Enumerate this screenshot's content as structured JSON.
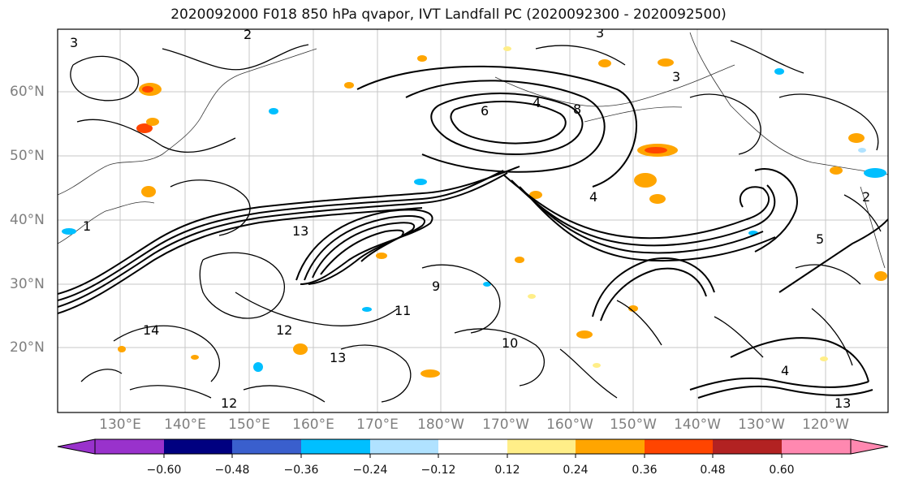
{
  "title": "2020092000 F018 850 hPa qvapor, IVT Landfall PC (2020092300 - 2020092500)",
  "map": {
    "lat_labels": [
      "60°N",
      "50°N",
      "40°N",
      "30°N",
      "20°N"
    ],
    "lon_labels": [
      "130°E",
      "140°E",
      "150°E",
      "160°E",
      "170°E",
      "180°W",
      "170°W",
      "160°W",
      "150°W",
      "140°W",
      "130°W",
      "120°W"
    ],
    "contour_labels": [
      "3",
      "2",
      "4",
      "6",
      "8",
      "3",
      "13",
      "12",
      "11",
      "10",
      "14",
      "13",
      "12",
      "9",
      "4",
      "1",
      "5",
      "3",
      "13",
      "2",
      "4"
    ],
    "contour_color": "#000000",
    "fill_colors": {
      "positive_low": "#ffed80",
      "positive_mid": "#ffa500",
      "positive_high": "#ff4000",
      "negative_low": "#b0e0ff",
      "negative_mid": "#00bfff"
    }
  },
  "colorbar": {
    "labels": [
      "−0.60",
      "−0.48",
      "−0.36",
      "−0.24",
      "−0.12",
      "0.12",
      "0.24",
      "0.36",
      "0.48",
      "0.60"
    ],
    "colors": [
      "#9932cc",
      "#000080",
      "#3a5fcd",
      "#00bfff",
      "#b0e2ff",
      "#ffffff",
      "#ffee88",
      "#ffa500",
      "#ff4500",
      "#b22222",
      "#ff88b0"
    ]
  }
}
